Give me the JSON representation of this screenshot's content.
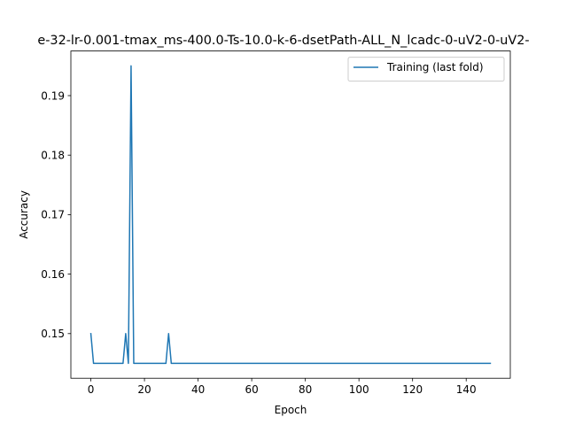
{
  "chart_data": {
    "type": "line",
    "title": "e-32-lr-0.001-tmax_ms-400.0-Ts-10.0-k-6-dsetPath-ALL_N_lcadc-0-uV2-0-uV2-",
    "xlabel": "Epoch",
    "ylabel": "Accuracy",
    "xlim": [
      -7.45,
      156.45
    ],
    "ylim": [
      0.1425,
      0.1975
    ],
    "xticks": [
      0,
      20,
      40,
      60,
      80,
      100,
      120,
      140
    ],
    "yticks": [
      0.15,
      0.16,
      0.17,
      0.18,
      0.19
    ],
    "xtick_labels": [
      "0",
      "20",
      "40",
      "60",
      "80",
      "100",
      "120",
      "140"
    ],
    "ytick_labels": [
      "0.15",
      "0.16",
      "0.17",
      "0.18",
      "0.19"
    ],
    "legend_position": "top-right",
    "grid": false,
    "series": [
      {
        "name": "Training (last fold)",
        "color": "#1f77b4",
        "x": [
          0,
          1,
          12,
          13,
          14,
          15,
          16,
          28,
          29,
          30,
          149
        ],
        "values": [
          0.15,
          0.145,
          0.145,
          0.15,
          0.145,
          0.195,
          0.145,
          0.145,
          0.15,
          0.145,
          0.145
        ]
      }
    ]
  }
}
